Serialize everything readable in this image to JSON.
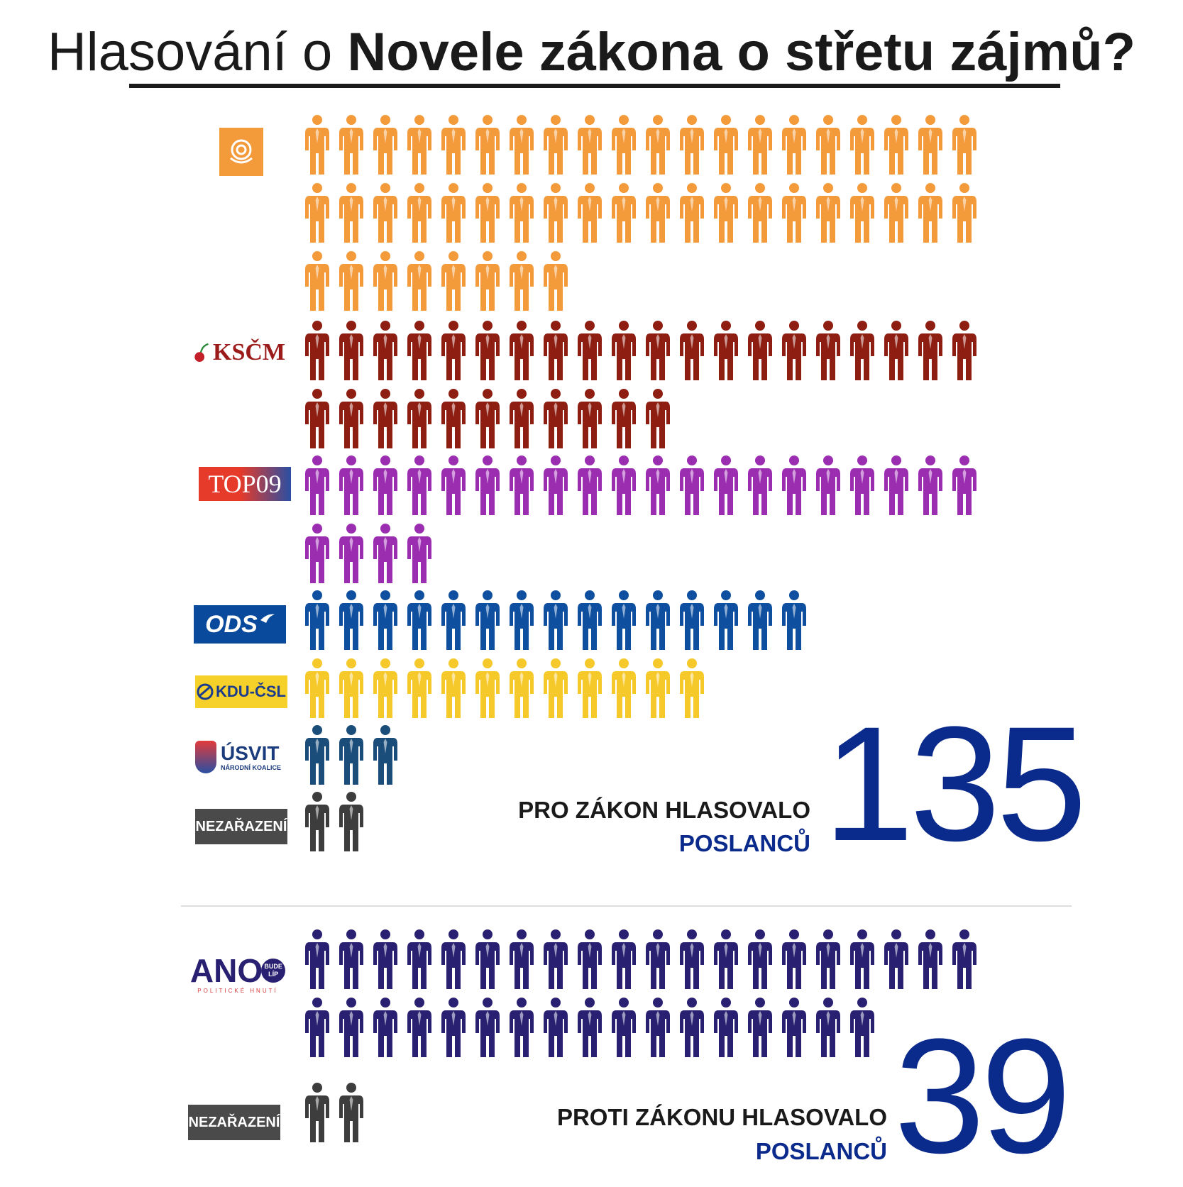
{
  "title": {
    "prefix": "Hlasování o ",
    "emphasis": "Novele zákona o střetu zájmů?"
  },
  "logos": {
    "kscm": "KSČM",
    "top09": "TOP09",
    "ods": "ODS",
    "kdu": "KDU-ČSL",
    "usvit": "ÚSVIT",
    "usvit_sub": "NÁRODNÍ KOALICE",
    "nezarazeni": "NEZAŘAZENÍ",
    "ano": "ANO",
    "ano_badge_1": "BUDE",
    "ano_badge_2": "LÍP",
    "ano_sub": "POLITICKÉ HNUTÍ"
  },
  "labels": {
    "for_line1": "PRO ZÁKON HLASOVALO",
    "for_line2": "POSLANCŮ",
    "against_line1": "PROTI ZÁKONU HLASOVALO",
    "against_line2": "POSLANCŮ"
  },
  "chart_data": {
    "type": "pictogram",
    "title": "Hlasování o Novele zákona o střetu zájmů?",
    "groups": [
      {
        "label": "PRO ZÁKON HLASOVALO POSLANCŮ",
        "total": 135,
        "series": [
          {
            "party": "ČSSD",
            "value": 48,
            "color": "#f39a3a"
          },
          {
            "party": "KSČM",
            "value": 31,
            "color": "#8e1d12"
          },
          {
            "party": "TOP 09",
            "value": 24,
            "color": "#9b2db0"
          },
          {
            "party": "ODS",
            "value": 15,
            "color": "#0f4fa0"
          },
          {
            "party": "KDU-ČSL",
            "value": 12,
            "color": "#f6c92a"
          },
          {
            "party": "ÚSVIT",
            "value": 3,
            "color": "#1b4d7a"
          },
          {
            "party": "NEZAŘAZENÍ",
            "value": 2,
            "color": "#3d3d3d"
          }
        ]
      },
      {
        "label": "PROTI ZÁKONU HLASOVALO POSLANCŮ",
        "total": 39,
        "series": [
          {
            "party": "ANO",
            "value": 37,
            "color": "#2a2072"
          },
          {
            "party": "NEZAŘAZENÍ",
            "value": 2,
            "color": "#3d3d3d"
          }
        ]
      }
    ]
  }
}
